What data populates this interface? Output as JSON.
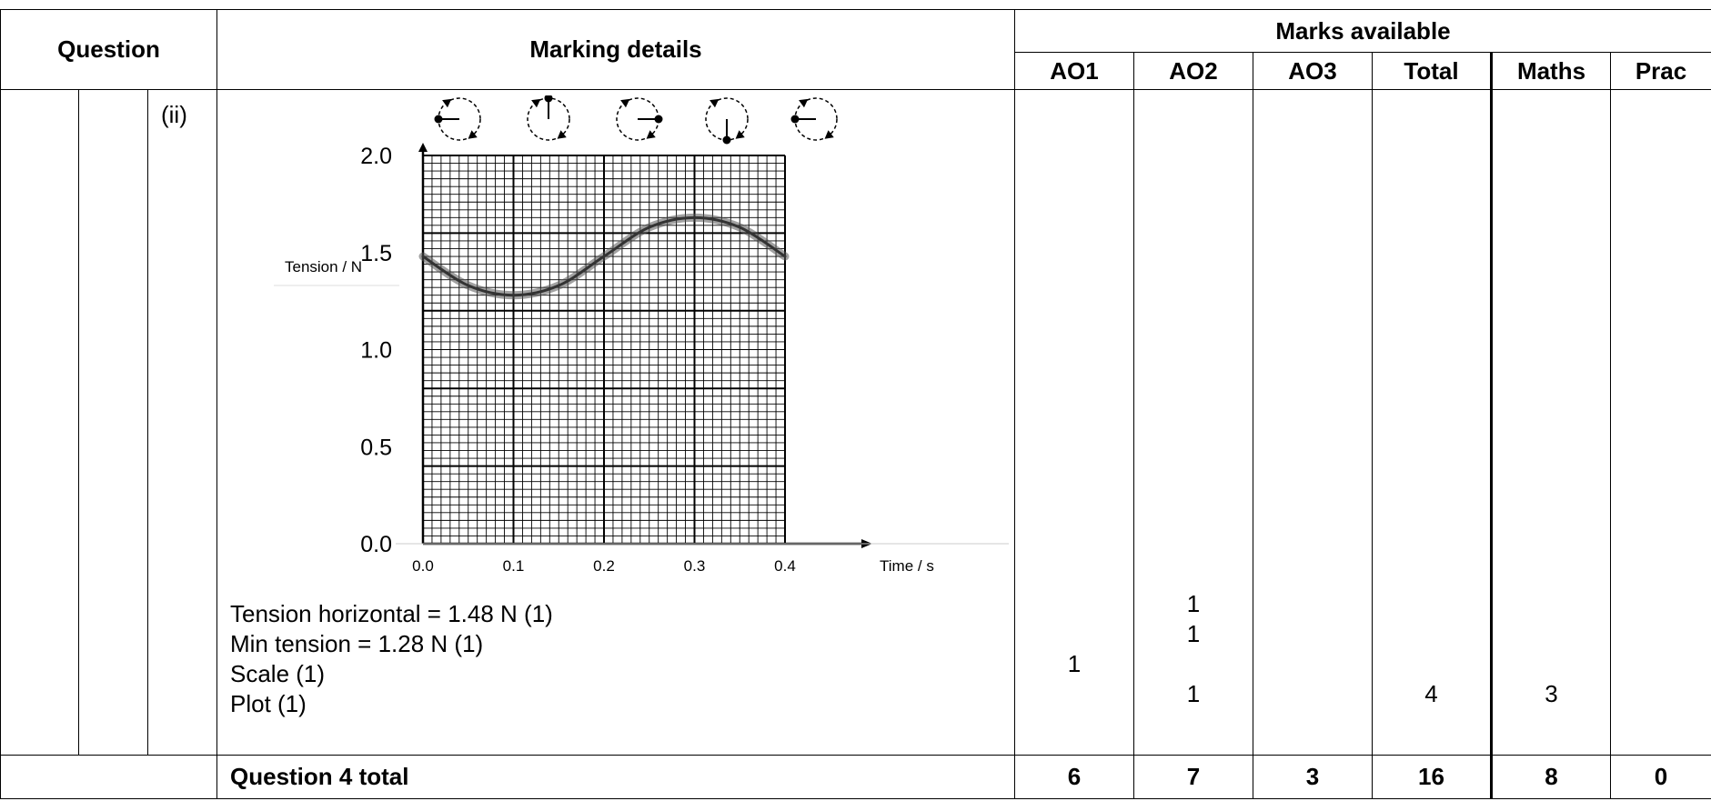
{
  "header": {
    "question": "Question",
    "marking_details": "Marking details",
    "marks_available": "Marks available",
    "columns": [
      "AO1",
      "AO2",
      "AO3",
      "Total",
      "Maths",
      "Prac"
    ]
  },
  "row": {
    "part": "(ii)",
    "criteria": [
      "Tension horizontal = 1.48 N (1)",
      "Min tension = 1.28 N (1)",
      "Scale (1)",
      "Plot (1)"
    ],
    "marks": {
      "ao1": [
        "1"
      ],
      "ao2": [
        "1",
        "1",
        "1"
      ],
      "total": [
        "4"
      ],
      "maths": [
        "3"
      ]
    }
  },
  "chart_data": {
    "type": "line",
    "xlabel": "Time / s",
    "ylabel": "Tension / N",
    "xlim": [
      0.0,
      0.4
    ],
    "ylim": [
      0.0,
      2.0
    ],
    "x_ticks": [
      "0.0",
      "0.1",
      "0.2",
      "0.3",
      "0.4"
    ],
    "y_ticks": [
      "0.0",
      "0.5",
      "1.0",
      "1.5",
      "2.0"
    ],
    "grid": true,
    "series": [
      {
        "x": [
          0.0,
          0.05,
          0.1,
          0.15,
          0.2,
          0.25,
          0.3,
          0.35,
          0.4
        ],
        "y": [
          1.48,
          1.33,
          1.28,
          1.33,
          1.48,
          1.63,
          1.68,
          1.63,
          1.48
        ]
      }
    ],
    "phase_indicators": [
      "left",
      "up",
      "right",
      "down",
      "left"
    ]
  },
  "total_row": {
    "label": "Question 4 total",
    "values": [
      "6",
      "7",
      "3",
      "16",
      "8",
      "0"
    ]
  }
}
